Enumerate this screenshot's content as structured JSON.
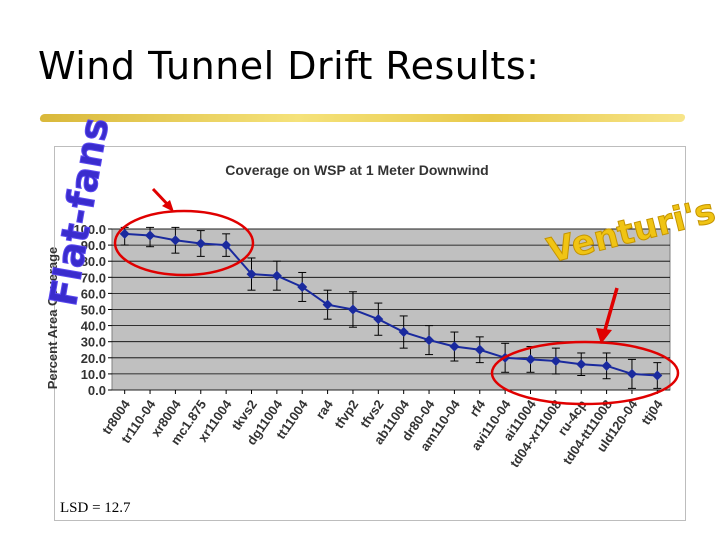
{
  "slide": {
    "title": "Wind Tunnel Drift Results:"
  },
  "chart_data": {
    "type": "line",
    "title": "Coverage on WSP at 1 Meter Downwind",
    "xlabel": "",
    "ylabel": "Percent Area Coverage",
    "ylim": [
      0,
      100
    ],
    "yticks": [
      "0.0",
      "10.0",
      "20.0",
      "30.0",
      "40.0",
      "50.0",
      "60.0",
      "70.0",
      "80.0",
      "90.0",
      "100.0"
    ],
    "categories": [
      "tr8004",
      "tr110-04",
      "xr8004",
      "mc1.875",
      "xr11004",
      "tkvs2",
      "dg11004",
      "tt11004",
      "ra4",
      "tfvp2",
      "tfvs2",
      "ab11004",
      "dr80-04",
      "am110-04",
      "rf4",
      "avi110-04",
      "ai11004",
      "td04-xr11008",
      "ru-4cp",
      "td04-tt11008",
      "uld120-04",
      "ttj04"
    ],
    "values": [
      97,
      96,
      93,
      91,
      90,
      72,
      71,
      64,
      53,
      50,
      44,
      36,
      31,
      27,
      25,
      20,
      19,
      18,
      16,
      15,
      10,
      9
    ],
    "errors": [
      7,
      7,
      8,
      8,
      7,
      10,
      9,
      9,
      9,
      11,
      10,
      10,
      9,
      9,
      8,
      9,
      8,
      8,
      7,
      8,
      9,
      8
    ],
    "grid": true,
    "colors": {
      "line": "#1a2a9e",
      "plot_bg": "#c0c0c0"
    }
  },
  "annotations": {
    "flat_fans": "Flat-fans",
    "venturis": "Venturi's",
    "lsd": "LSD = 12.7",
    "callout_color": "#3a2ccd",
    "arrow_color": "#e00000",
    "circle_color": "#e00000"
  }
}
